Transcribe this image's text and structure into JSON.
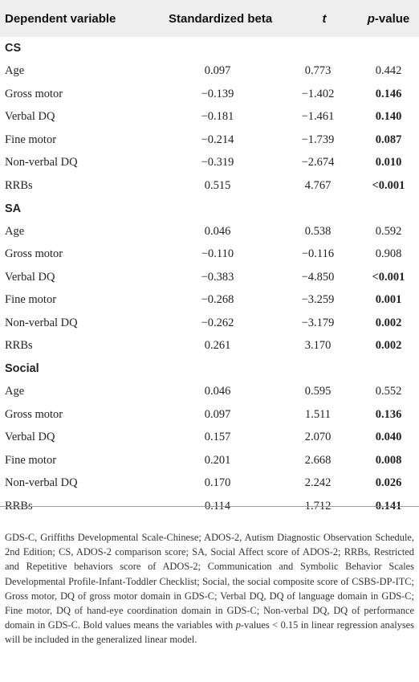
{
  "header": {
    "col1": "Dependent variable",
    "col2": "Standardized beta",
    "col3": "t",
    "col4_italic": "p",
    "col4_rest": "-value"
  },
  "sections": [
    {
      "title": "CS",
      "rows": [
        {
          "label": "Age",
          "beta": "0.097",
          "t": "0.773",
          "p": "0.442",
          "bold": false
        },
        {
          "label": "Gross motor",
          "beta": "−0.139",
          "t": "−1.402",
          "p": "0.146",
          "bold": true
        },
        {
          "label": "Verbal DQ",
          "beta": "−0.181",
          "t": "−1.461",
          "p": "0.140",
          "bold": true
        },
        {
          "label": "Fine motor",
          "beta": "−0.214",
          "t": "−1.739",
          "p": "0.087",
          "bold": true
        },
        {
          "label": "Non-verbal DQ",
          "beta": "−0.319",
          "t": "−2.674",
          "p": "0.010",
          "bold": true
        },
        {
          "label": "RRBs",
          "beta": "0.515",
          "t": "4.767",
          "p": "<0.001",
          "bold": true
        }
      ]
    },
    {
      "title": "SA",
      "rows": [
        {
          "label": "Age",
          "beta": "0.046",
          "t": "0.538",
          "p": "0.592",
          "bold": false
        },
        {
          "label": "Gross motor",
          "beta": "−0.110",
          "t": "−0.116",
          "p": "0.908",
          "bold": false
        },
        {
          "label": "Verbal DQ",
          "beta": "−0.383",
          "t": "−4.850",
          "p": "<0.001",
          "bold": true
        },
        {
          "label": "Fine motor",
          "beta": "−0.268",
          "t": "−3.259",
          "p": "0.001",
          "bold": true
        },
        {
          "label": "Non-verbal DQ",
          "beta": "−0.262",
          "t": "−3.179",
          "p": "0.002",
          "bold": true
        },
        {
          "label": "RRBs",
          "beta": "0.261",
          "t": "3.170",
          "p": "0.002",
          "bold": true
        }
      ]
    },
    {
      "title": "Social",
      "rows": [
        {
          "label": "Age",
          "beta": "0.046",
          "t": "0.595",
          "p": "0.552",
          "bold": false
        },
        {
          "label": "Gross motor",
          "beta": "0.097",
          "t": "1.511",
          "p": "0.136",
          "bold": true
        },
        {
          "label": "Verbal DQ",
          "beta": "0.157",
          "t": "2.070",
          "p": "0.040",
          "bold": true
        },
        {
          "label": "Fine motor",
          "beta": "0.201",
          "t": "2.668",
          "p": "0.008",
          "bold": true
        },
        {
          "label": "Non-verbal DQ",
          "beta": "0.170",
          "t": "2.242",
          "p": "0.026",
          "bold": true
        },
        {
          "label": "RRBs",
          "beta": "0.114",
          "t": "1.712",
          "p": "0.141",
          "bold": true
        }
      ]
    }
  ],
  "footnote": {
    "part1": "GDS-C, Griffiths Developmental Scale-Chinese; ADOS-2, Autism Diagnostic Observation Schedule, 2nd Edition; CS, ADOS-2 comparison score; SA, Social Affect score of ADOS-2; RRBs, Restricted and Repetitive behaviors score of ADOS-2; Communication and Symbolic Behavior Scales Developmental Profile-Infant-Toddler Checklist; Social, the social composite score of CSBS-DP-ITC; Gross motor, DQ of gross motor domain in GDS-C; Verbal DQ, DQ of language domain in GDS-C; Fine motor, DQ of hand-eye coordination domain in GDS-C; Non-verbal DQ, DQ of performance domain in GDS-C. Bold values means the variables with ",
    "italic_p": "p",
    "part2": "-values < 0.15 in linear regression analyses will be included in the generalized linear model."
  }
}
